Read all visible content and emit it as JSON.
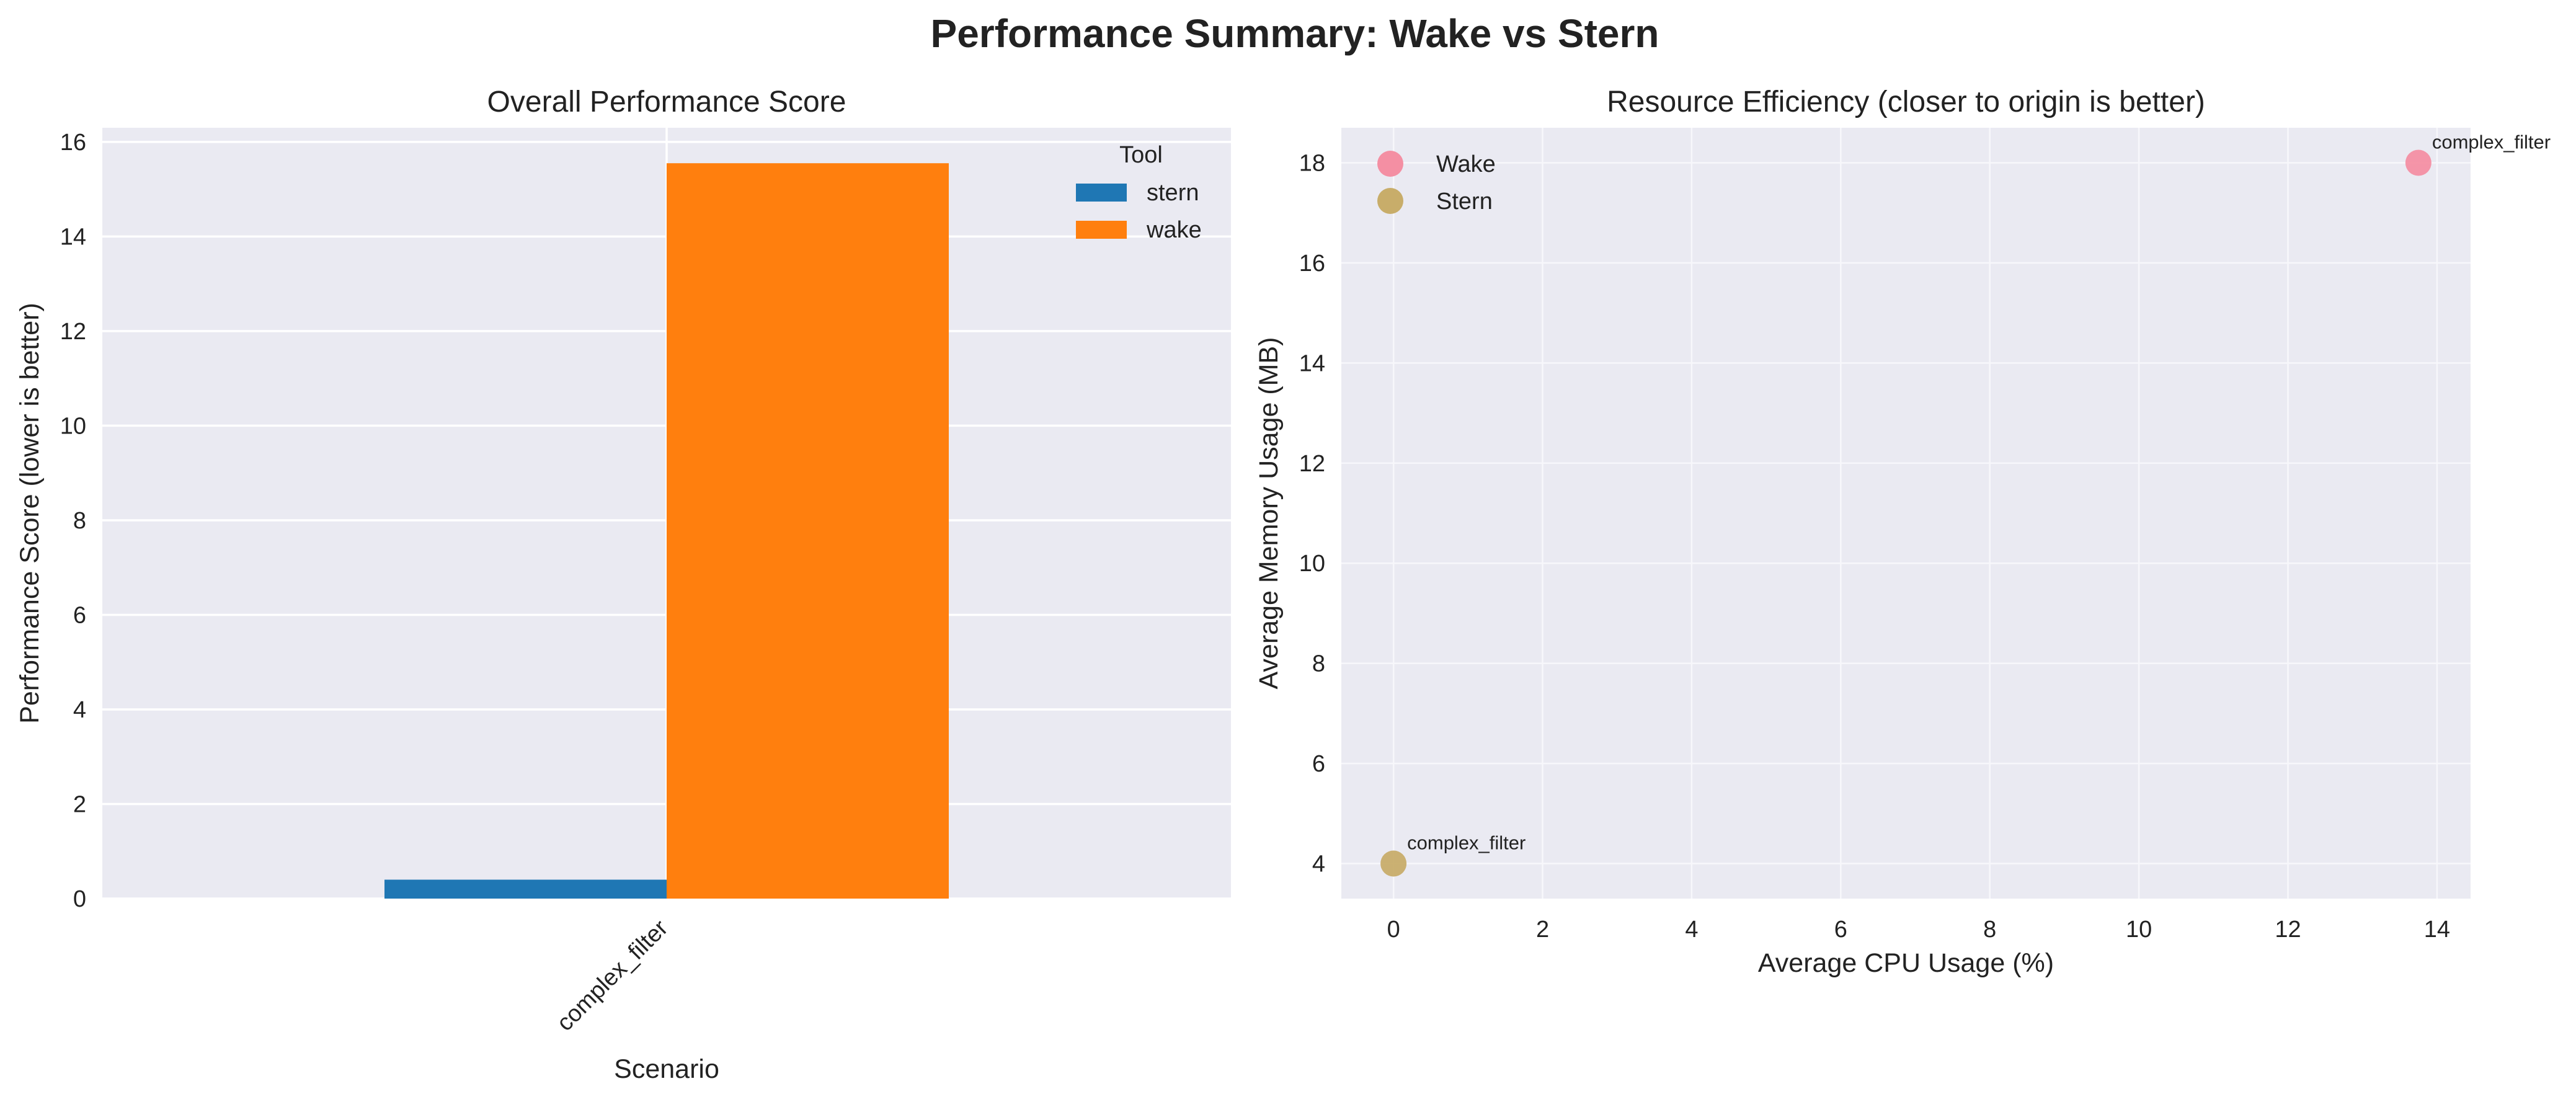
{
  "suptitle": "Performance Summary: Wake vs Stern",
  "chart_data": [
    {
      "type": "bar",
      "title": "Overall Performance Score",
      "xlabel": "Scenario",
      "ylabel": "Performance Score (lower is better)",
      "categories": [
        "complex_filter"
      ],
      "ylim": [
        0,
        16.3
      ],
      "yticks": [
        0,
        2,
        4,
        6,
        8,
        10,
        12,
        14,
        16
      ],
      "grid": true,
      "legend": {
        "title": "Tool",
        "placement": "top-right"
      },
      "series": [
        {
          "name": "stern",
          "values": [
            0.4
          ],
          "color": "#1f77b4"
        },
        {
          "name": "wake",
          "values": [
            15.55
          ],
          "color": "#ff7f0e"
        }
      ]
    },
    {
      "type": "scatter",
      "title": "Resource Efficiency (closer to origin is better)",
      "xlabel": "Average CPU Usage (%)",
      "ylabel": "Average Memory Usage (MB)",
      "xlim": [
        -0.7,
        14.45
      ],
      "ylim": [
        3.3,
        18.7
      ],
      "xticks": [
        0,
        2,
        4,
        6,
        8,
        10,
        12,
        14
      ],
      "yticks": [
        4,
        6,
        8,
        10,
        12,
        14,
        16,
        18
      ],
      "grid": true,
      "legend": {
        "placement": "top-left"
      },
      "series": [
        {
          "name": "Wake",
          "color": "#f48fa3",
          "points": [
            {
              "x": 13.75,
              "y": 18.0,
              "label": "complex_filter"
            }
          ]
        },
        {
          "name": "Stern",
          "color": "#c8ad6a",
          "points": [
            {
              "x": 0.0,
              "y": 4.0,
              "label": "complex_filter"
            }
          ]
        }
      ]
    }
  ]
}
